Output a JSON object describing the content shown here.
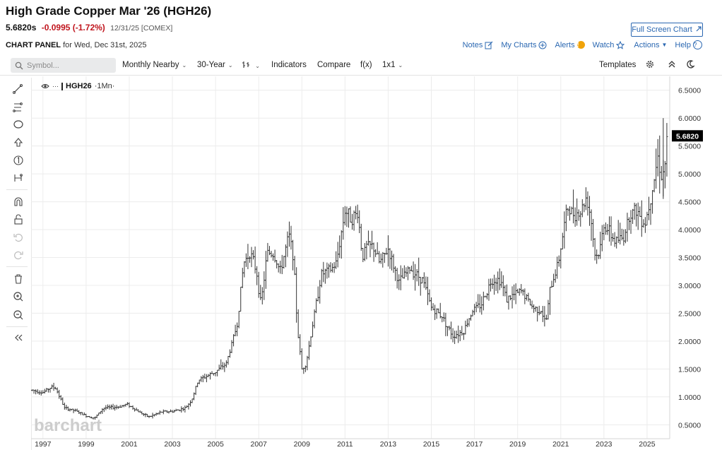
{
  "header": {
    "title": "High Grade Copper Mar '26 (HGH26)",
    "last": "5.6820s",
    "change": "-0.0995 (-1.72%)",
    "meta": "12/31/25 [COMEX]",
    "fullscreen": "Full Screen Chart"
  },
  "panel": {
    "label": "CHART PANEL",
    "for": "for Wed, Dec 31st, 2025"
  },
  "links": {
    "notes": "Notes",
    "my_charts": "My Charts",
    "alerts": "Alerts",
    "alert_count": "!",
    "watch": "Watch",
    "actions": "Actions",
    "help": "Help"
  },
  "toolbar": {
    "search_placeholder": "Symbol...",
    "aggregation": "Monthly Nearby",
    "range": "30-Year",
    "bar_type": "╠",
    "indicators": "Indicators",
    "compare": "Compare",
    "fx": "f(x)",
    "layout": "1x1",
    "templates": "Templates"
  },
  "legend": {
    "symbol": "HGH26",
    "interval": "·1Mn·"
  },
  "watermark": "barchart",
  "colors": {
    "bars": "#333333",
    "price_tag_bg": "#000000",
    "link": "#2a67b1",
    "negative": "#c0161e"
  },
  "chart_data": {
    "type": "ohlc",
    "frequency": "monthly",
    "x_ticks": [
      "1997",
      "1999",
      "2001",
      "2003",
      "2005",
      "2007",
      "2009",
      "2011",
      "2013",
      "2015",
      "2017",
      "2019",
      "2021",
      "2023",
      "2025"
    ],
    "y_ticks": [
      "6.5000",
      "6.0000",
      "5.5000",
      "5.0000",
      "4.5000",
      "4.0000",
      "3.5000",
      "3.0000",
      "2.5000",
      "2.0000",
      "1.5000",
      "1.0000",
      "0.5000"
    ],
    "ylim": [
      0.25,
      6.75
    ],
    "xlim": [
      1996.45,
      2026.05
    ],
    "last_price_label": "5.6820",
    "anchors": [
      [
        1996.5,
        1.12
      ],
      [
        1997.0,
        1.08
      ],
      [
        1997.4,
        1.18
      ],
      [
        1997.6,
        1.15
      ],
      [
        1998.0,
        0.8
      ],
      [
        1998.5,
        0.75
      ],
      [
        1999.0,
        0.66
      ],
      [
        1999.4,
        0.62
      ],
      [
        1999.8,
        0.8
      ],
      [
        2000.5,
        0.82
      ],
      [
        2000.9,
        0.87
      ],
      [
        2001.5,
        0.72
      ],
      [
        2001.9,
        0.64
      ],
      [
        2002.5,
        0.73
      ],
      [
        2003.0,
        0.74
      ],
      [
        2003.6,
        0.8
      ],
      [
        2003.9,
        0.95
      ],
      [
        2004.2,
        1.3
      ],
      [
        2005.0,
        1.45
      ],
      [
        2005.5,
        1.6
      ],
      [
        2006.0,
        2.3
      ],
      [
        2006.3,
        3.4
      ],
      [
        2006.6,
        3.6
      ],
      [
        2006.9,
        3.25
      ],
      [
        2007.1,
        2.65
      ],
      [
        2007.4,
        3.6
      ],
      [
        2007.7,
        3.55
      ],
      [
        2008.0,
        3.25
      ],
      [
        2008.4,
        3.9
      ],
      [
        2008.6,
        3.55
      ],
      [
        2008.8,
        2.2
      ],
      [
        2009.0,
        1.5
      ],
      [
        2009.2,
        1.6
      ],
      [
        2009.5,
        2.3
      ],
      [
        2009.9,
        3.2
      ],
      [
        2010.4,
        3.3
      ],
      [
        2010.6,
        3.4
      ],
      [
        2011.0,
        4.35
      ],
      [
        2011.3,
        4.2
      ],
      [
        2011.6,
        4.3
      ],
      [
        2011.8,
        3.5
      ],
      [
        2012.0,
        3.7
      ],
      [
        2012.3,
        3.7
      ],
      [
        2012.6,
        3.4
      ],
      [
        2013.0,
        3.65
      ],
      [
        2013.5,
        3.05
      ],
      [
        2014.0,
        3.3
      ],
      [
        2014.6,
        3.1
      ],
      [
        2015.0,
        2.6
      ],
      [
        2015.5,
        2.45
      ],
      [
        2015.8,
        2.22
      ],
      [
        2016.0,
        2.1
      ],
      [
        2016.5,
        2.18
      ],
      [
        2016.9,
        2.55
      ],
      [
        2017.3,
        2.65
      ],
      [
        2017.8,
        3.1
      ],
      [
        2018.2,
        3.1
      ],
      [
        2018.5,
        2.75
      ],
      [
        2018.8,
        2.82
      ],
      [
        2019.2,
        2.9
      ],
      [
        2019.7,
        2.6
      ],
      [
        2020.1,
        2.55
      ],
      [
        2020.3,
        2.3
      ],
      [
        2020.5,
        2.9
      ],
      [
        2020.9,
        3.45
      ],
      [
        2021.3,
        4.4
      ],
      [
        2021.5,
        4.3
      ],
      [
        2021.9,
        4.3
      ],
      [
        2022.2,
        4.6
      ],
      [
        2022.4,
        4.2
      ],
      [
        2022.6,
        3.5
      ],
      [
        2022.8,
        3.6
      ],
      [
        2023.0,
        4.1
      ],
      [
        2023.5,
        3.8
      ],
      [
        2023.9,
        3.85
      ],
      [
        2024.2,
        4.3
      ],
      [
        2024.5,
        4.35
      ],
      [
        2024.9,
        4.1
      ],
      [
        2025.1,
        4.45
      ],
      [
        2025.5,
        5.3
      ],
      [
        2025.7,
        4.9
      ],
      [
        2025.85,
        5.25
      ],
      [
        2025.95,
        5.68
      ]
    ]
  }
}
